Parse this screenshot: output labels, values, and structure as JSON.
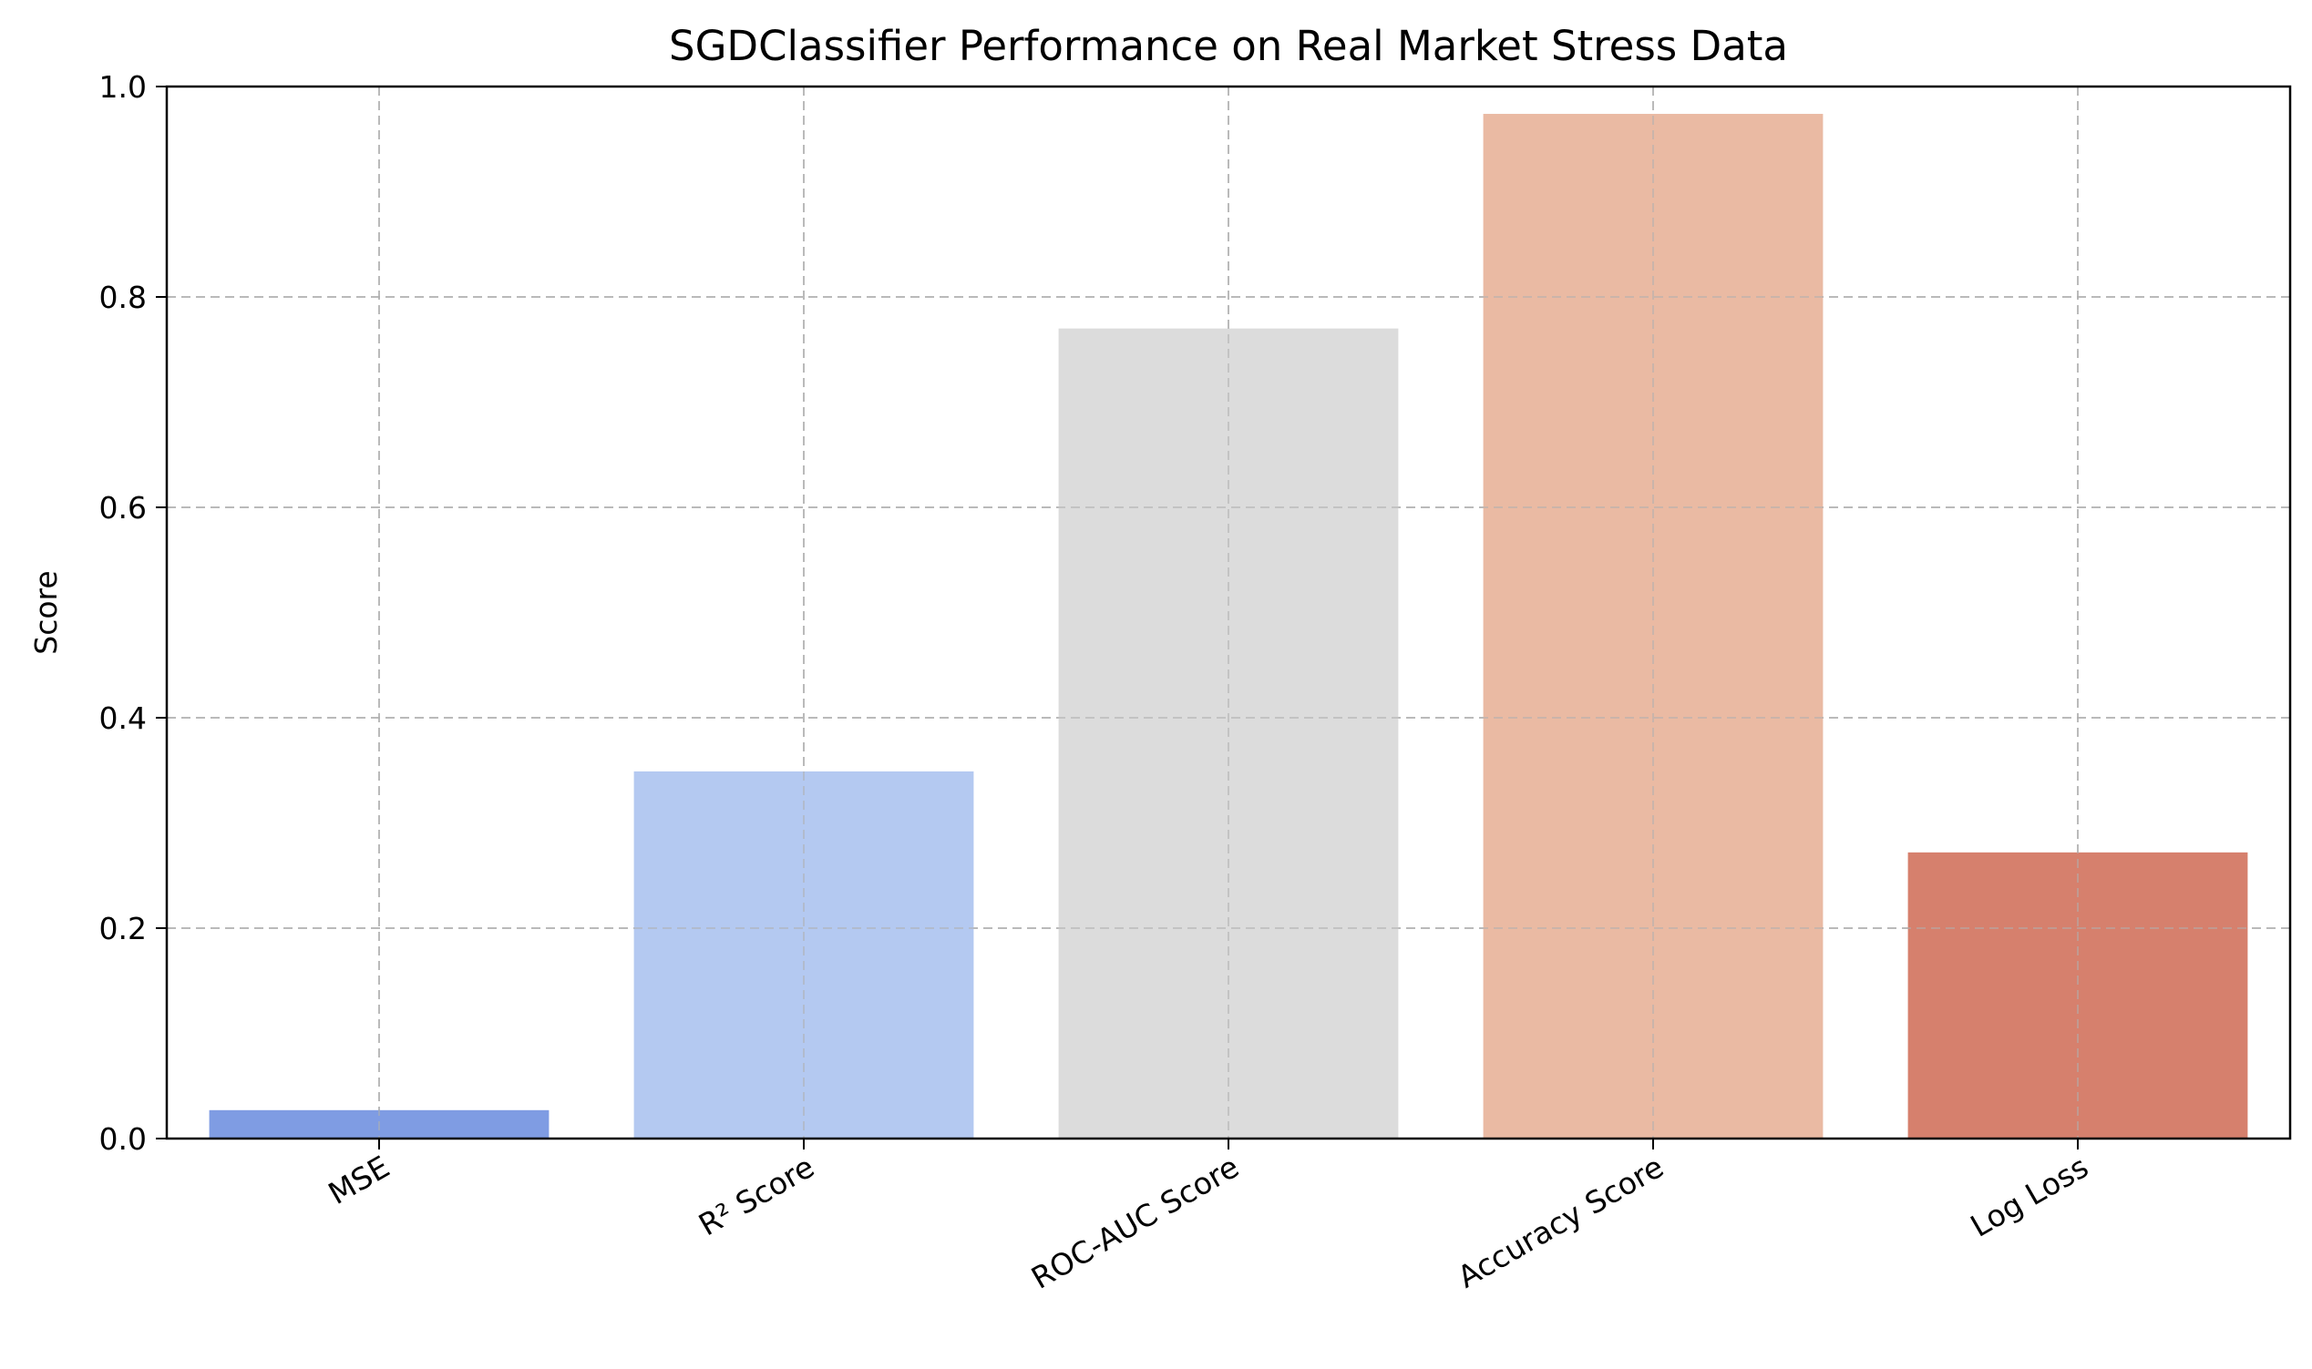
{
  "chart_data": {
    "type": "bar",
    "title": "SGDClassifier Performance on Real Market Stress Data",
    "xlabel": "",
    "ylabel": "Score",
    "categories": [
      "MSE",
      "R² Score",
      "ROC-AUC Score",
      "Accuracy Score",
      "Log Loss"
    ],
    "values": [
      0.027,
      0.349,
      0.77,
      0.974,
      0.272
    ],
    "colors": [
      "#7f9ce3",
      "#b4c9f1",
      "#dcdcdc",
      "#eabaa3",
      "#d6806d"
    ],
    "ylim": [
      0,
      1.0
    ],
    "yticks": [
      "0.0",
      "0.2",
      "0.4",
      "0.6",
      "0.8",
      "1.0"
    ],
    "ytick_values": [
      0.0,
      0.2,
      0.4,
      0.6,
      0.8,
      1.0
    ],
    "grid": true,
    "legend": "none"
  }
}
